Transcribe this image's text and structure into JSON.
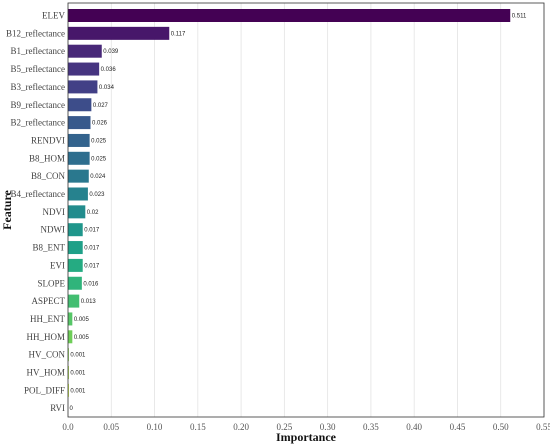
{
  "chart_data": {
    "type": "bar",
    "orientation": "horizontal",
    "xlabel": "Importance",
    "ylabel": "Feature",
    "xlim": [
      0,
      0.55
    ],
    "xticks": [
      "0.0",
      "0.05",
      "0.10",
      "0.15",
      "0.20",
      "0.25",
      "0.30",
      "0.35",
      "0.40",
      "0.45",
      "0.50",
      "0.55"
    ],
    "grid": "vertical",
    "colormap": "viridis",
    "categories": [
      "ELEV",
      "B12_reflectance",
      "B1_reflectance",
      "B5_reflectance",
      "B3_reflectance",
      "B9_reflectance",
      "B2_reflectance",
      "RENDVI",
      "B8_HOM",
      "B8_CON",
      "B4_reflectance",
      "NDVI",
      "NDWI",
      "B8_ENT",
      "EVI",
      "SLOPE",
      "ASPECT",
      "HH_ENT",
      "HH_HOM",
      "HV_CON",
      "HV_HOM",
      "POL_DIFF",
      "RVI"
    ],
    "values": [
      0.511,
      0.117,
      0.039,
      0.036,
      0.034,
      0.027,
      0.026,
      0.025,
      0.025,
      0.024,
      0.023,
      0.02,
      0.017,
      0.017,
      0.017,
      0.016,
      0.013,
      0.005,
      0.005,
      0.001,
      0.001,
      0.001,
      0
    ],
    "value_labels": [
      "0.511",
      "0.117",
      "0.039",
      "0.036",
      "0.034",
      "0.027",
      "0.026",
      "0.025",
      "0.025",
      "0.024",
      "0.023",
      "0.02",
      "0.017",
      "0.017",
      "0.017",
      "0.016",
      "0.013",
      "0.005",
      "0.005",
      "0.001",
      "0.001",
      "0.001",
      "0"
    ],
    "colors": [
      "#440154",
      "#47176a",
      "#482878",
      "#463480",
      "#424086",
      "#3d4d8a",
      "#38598c",
      "#33638d",
      "#2e6e8e",
      "#2a788e",
      "#26828e",
      "#228c8d",
      "#1f968b",
      "#1fa088",
      "#25ab82",
      "#30b47b",
      "#42be71",
      "#56c667",
      "#6ece58",
      "#88d54c",
      "#a2da37",
      "#bade28",
      "#d8e219"
    ]
  }
}
